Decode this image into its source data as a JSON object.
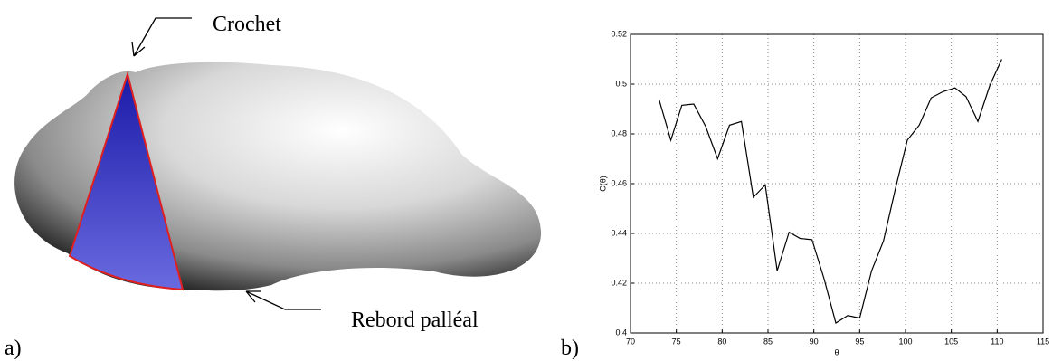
{
  "illustration": {
    "labels": [
      "Crochet",
      "Rebord palléal"
    ],
    "panel_labels": [
      "a)",
      "b)"
    ]
  },
  "chart_data": {
    "type": "line",
    "xlabel": "θ",
    "ylabel": "C(θ)",
    "x": [
      73.1,
      74.4,
      75.6,
      76.9,
      78.2,
      79.5,
      80.8,
      82.1,
      83.4,
      84.7,
      86.0,
      87.3,
      88.5,
      89.8,
      91.1,
      92.4,
      93.7,
      95.0,
      96.3,
      97.6,
      98.9,
      100.2,
      101.5,
      102.8,
      104.1,
      105.4,
      106.6,
      107.9,
      109.2,
      110.5
    ],
    "values": [
      0.494,
      0.4775,
      0.4915,
      0.492,
      0.483,
      0.47,
      0.4835,
      0.485,
      0.4545,
      0.4595,
      0.425,
      0.4405,
      0.438,
      0.4375,
      0.422,
      0.404,
      0.407,
      0.406,
      0.425,
      0.437,
      0.458,
      0.4775,
      0.4835,
      0.4945,
      0.497,
      0.4985,
      0.495,
      0.485,
      0.4995,
      0.51
    ],
    "color": "#000000",
    "xlim": [
      70,
      115
    ],
    "xticks": [
      70,
      75,
      80,
      85,
      90,
      95,
      100,
      105,
      110,
      115
    ],
    "ylim": [
      0.4,
      0.52
    ],
    "yticks": [
      0.4,
      0.42,
      0.44,
      0.46,
      0.48,
      0.5,
      0.52
    ],
    "grid": true
  }
}
